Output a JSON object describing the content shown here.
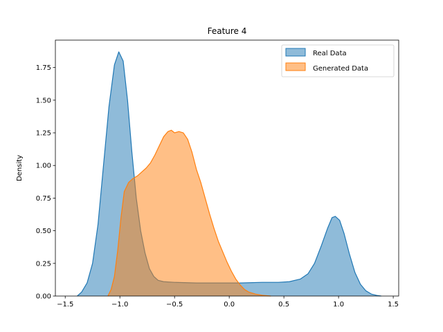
{
  "chart_data": {
    "type": "area",
    "title": "Feature 4",
    "xlabel": "",
    "ylabel": "Density",
    "xlim": [
      -1.59,
      1.55
    ],
    "ylim": [
      0,
      1.96
    ],
    "xticks": [
      -1.5,
      -1.0,
      -0.5,
      0.0,
      0.5,
      1.0,
      1.5
    ],
    "xtick_labels": [
      "−1.5",
      "−1.0",
      "−0.5",
      "0.0",
      "0.5",
      "1.0",
      "1.5"
    ],
    "yticks": [
      0.0,
      0.25,
      0.5,
      0.75,
      1.0,
      1.25,
      1.5,
      1.75
    ],
    "ytick_labels": [
      "0.00",
      "0.25",
      "0.50",
      "0.75",
      "1.00",
      "1.25",
      "1.50",
      "1.75"
    ],
    "grid": false,
    "legend_position": "top-right",
    "series": [
      {
        "name": "Real Data",
        "color": "#1f77b4",
        "fill_opacity": 0.5,
        "points": [
          [
            -1.39,
            0.0
          ],
          [
            -1.35,
            0.03
          ],
          [
            -1.3,
            0.1
          ],
          [
            -1.25,
            0.25
          ],
          [
            -1.2,
            0.55
          ],
          [
            -1.15,
            1.0
          ],
          [
            -1.1,
            1.45
          ],
          [
            -1.05,
            1.77
          ],
          [
            -1.01,
            1.87
          ],
          [
            -0.97,
            1.8
          ],
          [
            -0.93,
            1.5
          ],
          [
            -0.89,
            1.1
          ],
          [
            -0.85,
            0.75
          ],
          [
            -0.81,
            0.5
          ],
          [
            -0.77,
            0.33
          ],
          [
            -0.73,
            0.21
          ],
          [
            -0.69,
            0.15
          ],
          [
            -0.65,
            0.12
          ],
          [
            -0.6,
            0.11
          ],
          [
            -0.5,
            0.105
          ],
          [
            -0.3,
            0.1
          ],
          [
            -0.1,
            0.1
          ],
          [
            0.1,
            0.1
          ],
          [
            0.3,
            0.105
          ],
          [
            0.45,
            0.105
          ],
          [
            0.55,
            0.11
          ],
          [
            0.65,
            0.13
          ],
          [
            0.72,
            0.17
          ],
          [
            0.78,
            0.25
          ],
          [
            0.84,
            0.38
          ],
          [
            0.9,
            0.52
          ],
          [
            0.94,
            0.6
          ],
          [
            0.97,
            0.61
          ],
          [
            1.01,
            0.58
          ],
          [
            1.05,
            0.48
          ],
          [
            1.1,
            0.32
          ],
          [
            1.15,
            0.18
          ],
          [
            1.2,
            0.09
          ],
          [
            1.25,
            0.04
          ],
          [
            1.3,
            0.015
          ],
          [
            1.35,
            0.005
          ],
          [
            1.39,
            0.0
          ]
        ]
      },
      {
        "name": "Generated Data",
        "color": "#ff7f0e",
        "fill_opacity": 0.5,
        "points": [
          [
            -1.11,
            0.0
          ],
          [
            -1.08,
            0.05
          ],
          [
            -1.05,
            0.15
          ],
          [
            -1.02,
            0.35
          ],
          [
            -0.99,
            0.6
          ],
          [
            -0.96,
            0.8
          ],
          [
            -0.92,
            0.87
          ],
          [
            -0.88,
            0.9
          ],
          [
            -0.84,
            0.92
          ],
          [
            -0.8,
            0.95
          ],
          [
            -0.76,
            0.98
          ],
          [
            -0.72,
            1.02
          ],
          [
            -0.68,
            1.08
          ],
          [
            -0.64,
            1.15
          ],
          [
            -0.6,
            1.22
          ],
          [
            -0.56,
            1.26
          ],
          [
            -0.53,
            1.27
          ],
          [
            -0.5,
            1.25
          ],
          [
            -0.46,
            1.26
          ],
          [
            -0.42,
            1.25
          ],
          [
            -0.38,
            1.2
          ],
          [
            -0.34,
            1.1
          ],
          [
            -0.3,
            0.97
          ],
          [
            -0.26,
            0.87
          ],
          [
            -0.22,
            0.75
          ],
          [
            -0.18,
            0.63
          ],
          [
            -0.14,
            0.52
          ],
          [
            -0.1,
            0.42
          ],
          [
            -0.06,
            0.34
          ],
          [
            -0.02,
            0.26
          ],
          [
            0.02,
            0.19
          ],
          [
            0.06,
            0.13
          ],
          [
            0.1,
            0.085
          ],
          [
            0.14,
            0.05
          ],
          [
            0.18,
            0.03
          ],
          [
            0.24,
            0.015
          ],
          [
            0.3,
            0.006
          ],
          [
            0.38,
            0.0
          ]
        ]
      }
    ]
  }
}
